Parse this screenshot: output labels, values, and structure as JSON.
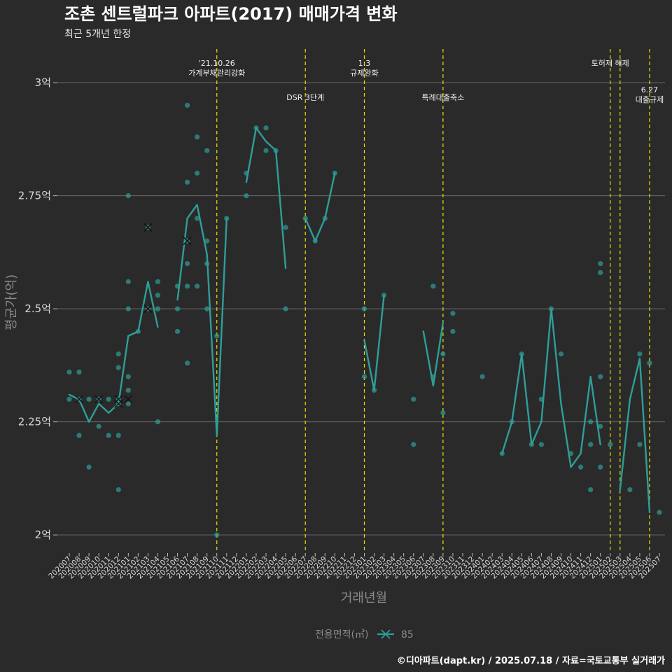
{
  "title": "조촌 센트럴파크 아파트(2017) 매매가격 변화",
  "subtitle": "최근 5개년 한정",
  "caption": "©디아파트(dapt.kr) / 2025.07.18 / 자료=국토교통부 실거래가",
  "chart_data": {
    "type": "line",
    "xlabel": "거래년월",
    "ylabel": "평균가(억)",
    "ylim": [
      1.96,
      3.09
    ],
    "yticks": [
      {
        "value": 2.0,
        "label": "2억"
      },
      {
        "value": 2.25,
        "label": "2.25억"
      },
      {
        "value": 2.5,
        "label": "2.5억"
      },
      {
        "value": 2.75,
        "label": "2.75억"
      },
      {
        "value": 3.0,
        "label": "3억"
      }
    ],
    "months": [
      "202007",
      "202008",
      "202009",
      "202010",
      "202011",
      "202012",
      "202101",
      "202102",
      "202103",
      "202104",
      "202105",
      "202106",
      "202107",
      "202108",
      "202109",
      "202110",
      "202111",
      "202112",
      "202201",
      "202202",
      "202203",
      "202204",
      "202205",
      "202206",
      "202207",
      "202208",
      "202209",
      "202210",
      "202211",
      "202212",
      "202301",
      "202302",
      "202303",
      "202304",
      "202305",
      "202306",
      "202307",
      "202308",
      "202309",
      "202310",
      "202311",
      "202312",
      "202401",
      "202402",
      "202403",
      "202404",
      "202405",
      "202406",
      "202407",
      "202408",
      "202409",
      "202410",
      "202411",
      "202412",
      "202501",
      "202502",
      "202503",
      "202504",
      "202505",
      "202506",
      "202507"
    ],
    "legend": {
      "title": "전용면적(㎡)",
      "label": "85",
      "position": "bottom"
    },
    "color": "#2e9e98",
    "annotation_color": "#e8e000",
    "annotations": [
      {
        "month": "202110",
        "lines": [
          "'21.10.26",
          "가계부채관리강화"
        ],
        "row": 1
      },
      {
        "month": "202207",
        "lines": [
          "DSR 3단계"
        ],
        "row": 2
      },
      {
        "month": "202301",
        "lines": [
          "1.3",
          "규제완화"
        ],
        "row": 1
      },
      {
        "month": "202309",
        "lines": [
          "특례대출축소"
        ],
        "row": 2
      },
      {
        "month": "202502",
        "lines": [
          "토허제 해제"
        ],
        "row": 1
      },
      {
        "month": "202503",
        "lines": [
          ""
        ],
        "row": 1
      },
      {
        "month": "202506",
        "lines": [
          "6.27",
          "대출규제"
        ],
        "row": 3
      }
    ],
    "line_segments": [
      [
        [
          0,
          2.31
        ],
        [
          1,
          2.3
        ],
        [
          2,
          2.25
        ],
        [
          3,
          2.29
        ],
        [
          4,
          2.27
        ],
        [
          5,
          2.29
        ],
        [
          6,
          2.44
        ],
        [
          7,
          2.45
        ],
        [
          8,
          2.56
        ],
        [
          9,
          2.46
        ]
      ],
      [
        [
          11,
          2.52
        ],
        [
          12,
          2.7
        ],
        [
          13,
          2.73
        ],
        [
          14,
          2.62
        ],
        [
          15,
          2.22
        ],
        [
          16,
          2.7
        ]
      ],
      [
        [
          18,
          2.78
        ],
        [
          19,
          2.9
        ],
        [
          20,
          2.87
        ],
        [
          21,
          2.85
        ],
        [
          22,
          2.59
        ]
      ],
      [
        [
          24,
          2.7
        ],
        [
          25,
          2.65
        ],
        [
          26,
          2.7
        ],
        [
          27,
          2.8
        ]
      ],
      [
        [
          30,
          2.43
        ],
        [
          31,
          2.32
        ],
        [
          32,
          2.53
        ]
      ],
      [
        [
          36,
          2.45
        ],
        [
          37,
          2.33
        ],
        [
          38,
          2.47
        ]
      ],
      [
        [
          44,
          2.18
        ],
        [
          45,
          2.25
        ],
        [
          46,
          2.4
        ],
        [
          47,
          2.2
        ],
        [
          48,
          2.25
        ],
        [
          49,
          2.5
        ],
        [
          50,
          2.29
        ],
        [
          51,
          2.15
        ],
        [
          52,
          2.18
        ],
        [
          53,
          2.35
        ],
        [
          54,
          2.2
        ]
      ],
      [
        [
          56,
          2.1
        ],
        [
          57,
          2.3
        ],
        [
          58,
          2.39
        ],
        [
          59,
          2.05
        ]
      ]
    ],
    "points": [
      [
        0,
        2.36
      ],
      [
        0,
        2.3
      ],
      [
        1,
        2.36
      ],
      [
        1,
        2.3
      ],
      [
        1,
        2.22
      ],
      [
        2,
        2.3
      ],
      [
        2,
        2.15
      ],
      [
        3,
        2.3
      ],
      [
        3,
        2.24
      ],
      [
        4,
        2.3
      ],
      [
        4,
        2.22
      ],
      [
        5,
        2.4
      ],
      [
        5,
        2.37
      ],
      [
        5,
        2.3
      ],
      [
        5,
        2.29
      ],
      [
        5,
        2.22
      ],
      [
        5,
        2.1
      ],
      [
        6,
        2.75
      ],
      [
        6,
        2.56
      ],
      [
        6,
        2.5
      ],
      [
        6,
        2.35
      ],
      [
        6,
        2.32
      ],
      [
        6,
        2.29
      ],
      [
        7,
        2.45
      ],
      [
        8,
        2.68
      ],
      [
        8,
        2.5
      ],
      [
        9,
        2.56
      ],
      [
        9,
        2.53
      ],
      [
        9,
        2.5
      ],
      [
        9,
        2.25
      ],
      [
        11,
        2.55
      ],
      [
        11,
        2.5
      ],
      [
        11,
        2.45
      ],
      [
        12,
        2.95
      ],
      [
        12,
        2.78
      ],
      [
        12,
        2.65
      ],
      [
        12,
        2.6
      ],
      [
        12,
        2.55
      ],
      [
        12,
        2.38
      ],
      [
        13,
        2.88
      ],
      [
        13,
        2.8
      ],
      [
        13,
        2.7
      ],
      [
        13,
        2.55
      ],
      [
        14,
        2.85
      ],
      [
        14,
        2.65
      ],
      [
        14,
        2.6
      ],
      [
        14,
        2.5
      ],
      [
        15,
        2.44
      ],
      [
        15,
        2.0
      ],
      [
        16,
        2.7
      ],
      [
        18,
        2.8
      ],
      [
        18,
        2.75
      ],
      [
        19,
        2.9
      ],
      [
        20,
        2.9
      ],
      [
        20,
        2.85
      ],
      [
        21,
        2.85
      ],
      [
        22,
        2.68
      ],
      [
        22,
        2.5
      ],
      [
        24,
        2.7
      ],
      [
        25,
        2.65
      ],
      [
        26,
        2.7
      ],
      [
        27,
        2.8
      ],
      [
        30,
        2.5
      ],
      [
        30,
        2.35
      ],
      [
        31,
        2.32
      ],
      [
        32,
        2.53
      ],
      [
        35,
        2.3
      ],
      [
        35,
        2.2
      ],
      [
        37,
        2.55
      ],
      [
        37,
        2.35
      ],
      [
        38,
        2.4
      ],
      [
        38,
        2.27
      ],
      [
        39,
        2.49
      ],
      [
        39,
        2.45
      ],
      [
        42,
        2.35
      ],
      [
        44,
        2.18
      ],
      [
        45,
        2.25
      ],
      [
        46,
        2.4
      ],
      [
        47,
        2.2
      ],
      [
        48,
        2.3
      ],
      [
        48,
        2.2
      ],
      [
        49,
        2.5
      ],
      [
        50,
        2.4
      ],
      [
        51,
        2.18
      ],
      [
        52,
        2.15
      ],
      [
        53,
        2.25
      ],
      [
        53,
        2.2
      ],
      [
        53,
        2.1
      ],
      [
        54,
        2.6
      ],
      [
        54,
        2.58
      ],
      [
        54,
        2.35
      ],
      [
        54,
        2.24
      ],
      [
        54,
        2.15
      ],
      [
        55,
        2.2
      ],
      [
        57,
        2.1
      ],
      [
        58,
        2.4
      ],
      [
        58,
        2.2
      ],
      [
        59,
        2.38
      ],
      [
        60,
        2.05
      ]
    ],
    "x_markers": [
      [
        1,
        2.3
      ],
      [
        3,
        2.3
      ],
      [
        5,
        2.3
      ],
      [
        5,
        2.29
      ],
      [
        6,
        2.3
      ],
      [
        8,
        2.68
      ],
      [
        8,
        2.5
      ],
      [
        12,
        2.65
      ]
    ]
  }
}
